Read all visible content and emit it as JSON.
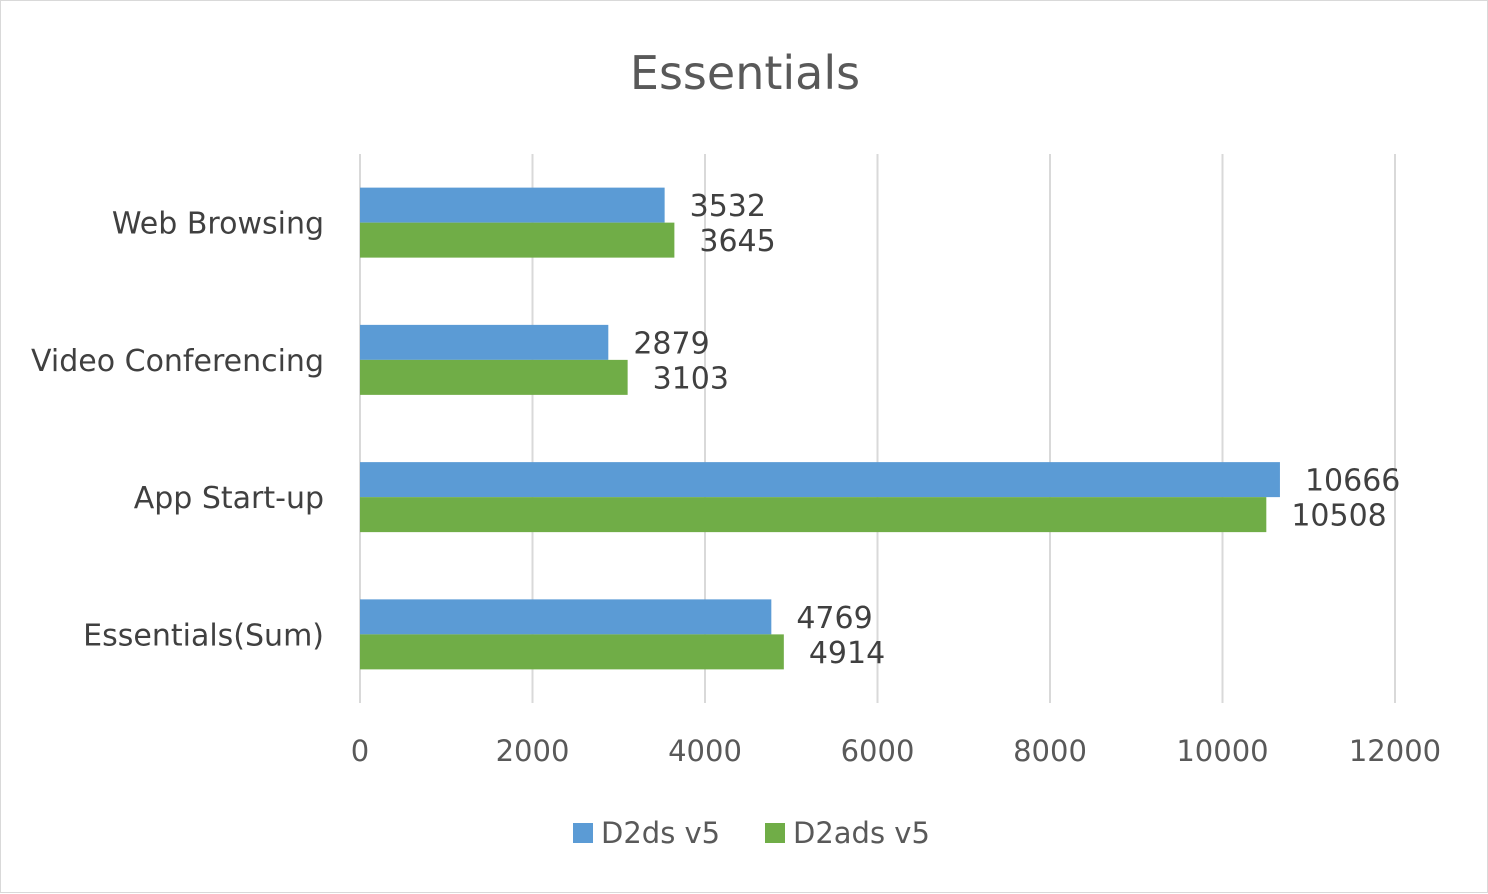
{
  "chart_data": {
    "type": "bar",
    "orientation": "horizontal",
    "title": "Essentials",
    "categories": [
      "Web Browsing",
      "Video Conferencing",
      "App Start-up",
      "Essentials(Sum)"
    ],
    "series": [
      {
        "name": "D2ds v5",
        "color": "#5b9bd5",
        "values": [
          3532,
          2879,
          10666,
          4769
        ]
      },
      {
        "name": "D2ads v5",
        "color": "#70ad47",
        "values": [
          3645,
          3103,
          10508,
          4914
        ]
      }
    ],
    "xlim": [
      0,
      12000
    ],
    "x_ticks": [
      "0",
      "2000",
      "4000",
      "6000",
      "8000",
      "10000",
      "12000"
    ],
    "grid": true,
    "legend_position": "bottom",
    "data_labels": true
  }
}
